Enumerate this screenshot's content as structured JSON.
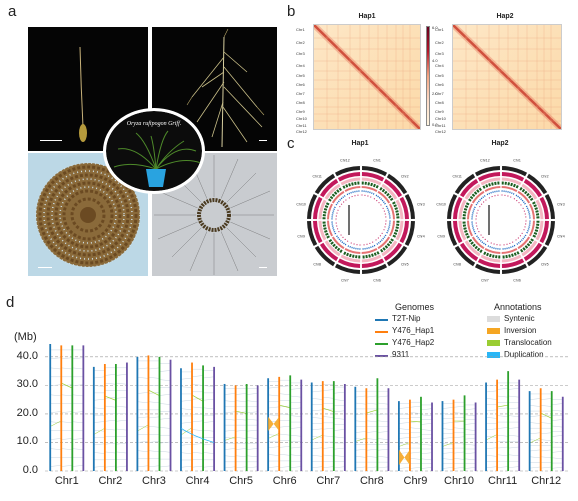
{
  "figure": {
    "panel_labels": [
      "a",
      "b",
      "c",
      "d"
    ],
    "panel_a": {
      "species_label": "Oryza rufipogon Griff."
    },
    "panel_b": {
      "titles": [
        "Hap1",
        "Hap2"
      ],
      "chromosomes": [
        "Chr1",
        "Chr2",
        "Chr3",
        "Chr4",
        "Chr5",
        "Chr6",
        "Chr7",
        "Chr8",
        "Chr9",
        "Chr10",
        "Chr11",
        "Chr12"
      ],
      "colorbar_ticks": [
        "6.0",
        "4.0",
        "2.0",
        "0.0"
      ],
      "colors": {
        "high": "#b2182b",
        "low": "#fff5e0",
        "mid": "#f4a582"
      }
    },
    "panel_c": {
      "titles": [
        "Hap1",
        "Hap2"
      ],
      "chromosomes": [
        "Chr1",
        "Chr2",
        "Chr3",
        "Chr4",
        "Chr5",
        "Chr6",
        "Chr7",
        "Chr8",
        "Chr9",
        "Chr10",
        "Chr11",
        "Chr12"
      ]
    },
    "panel_d": {
      "y_axis_label": "(Mb)",
      "y_ticks": [
        "0.0",
        "10.0",
        "20.0",
        "30.0",
        "40.0"
      ],
      "genomes_title": "Genomes",
      "genomes": [
        {
          "name": "T2T-Nip",
          "color": "#1f77b4"
        },
        {
          "name": "Y476_Hap1",
          "color": "#ff7f0e"
        },
        {
          "name": "Y476_Hap2",
          "color": "#2ca02c"
        },
        {
          "name": "9311",
          "color": "#6a51a3"
        }
      ],
      "annotations_title": "Annotations",
      "annotations": [
        {
          "name": "Syntenic",
          "color": "#dcdcdc"
        },
        {
          "name": "Inversion",
          "color": "#f5a623"
        },
        {
          "name": "Translocation",
          "color": "#9acd32"
        },
        {
          "name": "Duplication",
          "color": "#29b6f6"
        }
      ],
      "chart_data": {
        "type": "bar",
        "categories": [
          "Chr1",
          "Chr2",
          "Chr3",
          "Chr4",
          "Chr5",
          "Chr6",
          "Chr7",
          "Chr8",
          "Chr9",
          "Chr10",
          "Chr11",
          "Chr12"
        ],
        "series": [
          {
            "name": "T2T-Nip",
            "values": [
              44.5,
              36.5,
              40.0,
              36.0,
              30.5,
              32.5,
              31.0,
              29.5,
              24.5,
              24.5,
              31.0,
              28.0
            ]
          },
          {
            "name": "Y476_Hap1",
            "values": [
              44.0,
              37.5,
              40.5,
              38.0,
              30.0,
              33.0,
              31.5,
              29.0,
              25.0,
              25.0,
              32.0,
              29.0
            ]
          },
          {
            "name": "Y476_Hap2",
            "values": [
              44.0,
              37.5,
              40.0,
              37.0,
              30.5,
              33.5,
              31.5,
              32.5,
              26.0,
              26.5,
              35.0,
              28.0
            ]
          },
          {
            "name": "9311",
            "values": [
              44.0,
              38.0,
              39.0,
              36.5,
              30.0,
              32.0,
              30.5,
              29.0,
              24.0,
              24.0,
              32.0,
              26.0
            ]
          }
        ],
        "ylabel": "(Mb)",
        "ylim": [
          0,
          45
        ],
        "inversions": [
          {
            "chr": "Chr6",
            "start": 14.0,
            "end": 19.0
          },
          {
            "chr": "Chr9",
            "start": 2.0,
            "end": 7.5
          }
        ]
      }
    }
  }
}
